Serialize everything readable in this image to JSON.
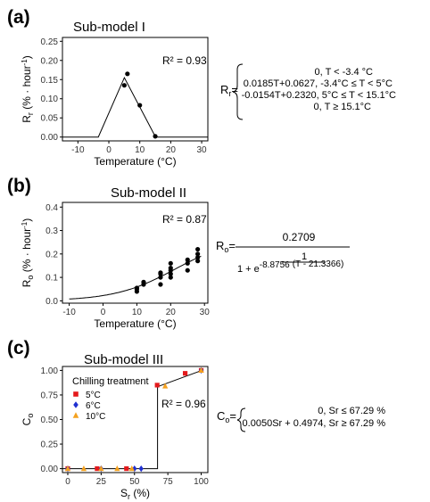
{
  "panels": [
    {
      "tag": "(a)",
      "title": "Sub-model I",
      "r2": "R² = 0.93",
      "eq_lhs": "R",
      "eq_lhs_sub": "r",
      "eq_sep": "=",
      "eq_lines": [
        "0, T < -3.4 °C",
        "0.0185T+0.0627, -3.4°C ≤ T < 5°C",
        "-0.0154T+0.2320, 5°C ≤ T < 15.1°C",
        "0, T ≥ 15.1°C"
      ]
    },
    {
      "tag": "(b)",
      "title": "Sub-model II",
      "r2": "R² = 0.87",
      "eq_lhs": "R",
      "eq_lhs_sub": "o",
      "eq_sep": "=",
      "eq_numer": "0.2709",
      "eq_inner_numer": "1",
      "eq_inner_denom_prefix": "1 + e",
      "eq_exponent": "-8.8756",
      "eq_tail": "(T - 21.3366)"
    },
    {
      "tag": "(c)",
      "title": "Sub-model III",
      "r2": "R² = 0.96",
      "eq_lhs": "C",
      "eq_lhs_sub": "o",
      "eq_sep": "=",
      "eq_lines": [
        "0, Sr ≤ 67.29 %",
        "0.0050Sr + 0.4974, Sr ≥ 67.29 %"
      ],
      "legend_title": "Chilling treatment"
    }
  ],
  "chart_data": [
    {
      "type": "scatter",
      "title": "Sub-model I",
      "xlabel": "Temperature (°C)",
      "ylabel": "Rr (% · hour⁻¹)",
      "xlim": [
        -15,
        32
      ],
      "ylim": [
        -0.01,
        0.26
      ],
      "xticks": [
        -10,
        0,
        10,
        20,
        30
      ],
      "yticks": [
        0.0,
        0.05,
        0.1,
        0.15,
        0.2,
        0.25
      ],
      "xtick_labels": [
        "-10",
        "0",
        "10",
        "20",
        "30"
      ],
      "ytick_labels": [
        "0.00",
        "0.05",
        "0.10",
        "0.15",
        "0.20",
        "0.25"
      ],
      "points": [
        {
          "x": 5,
          "y": 0.135
        },
        {
          "x": 6,
          "y": 0.165
        },
        {
          "x": 10,
          "y": 0.083
        },
        {
          "x": 15,
          "y": 0.002
        }
      ],
      "model_curve": [
        [
          -15,
          0
        ],
        [
          -3.4,
          0
        ],
        [
          5,
          0.155
        ],
        [
          15.1,
          0
        ],
        [
          32,
          0
        ]
      ],
      "grid": false
    },
    {
      "type": "scatter",
      "title": "Sub-model II",
      "xlabel": "Temperature (°C)",
      "ylabel": "Ro (% · hour⁻¹)",
      "xlim": [
        -12,
        31
      ],
      "ylim": [
        -0.01,
        0.42
      ],
      "xticks": [
        -10,
        0,
        10,
        20,
        30
      ],
      "yticks": [
        0.0,
        0.1,
        0.2,
        0.3,
        0.4
      ],
      "xtick_labels": [
        "-10",
        "0",
        "10",
        "20",
        "30"
      ],
      "ytick_labels": [
        "0.0",
        "0.1",
        "0.2",
        "0.3",
        "0.4"
      ],
      "points": [
        {
          "x": 10,
          "y": 0.04
        },
        {
          "x": 10,
          "y": 0.05
        },
        {
          "x": 10,
          "y": 0.055
        },
        {
          "x": 12,
          "y": 0.07
        },
        {
          "x": 12,
          "y": 0.08
        },
        {
          "x": 17,
          "y": 0.07
        },
        {
          "x": 17,
          "y": 0.1
        },
        {
          "x": 17,
          "y": 0.115
        },
        {
          "x": 17,
          "y": 0.12
        },
        {
          "x": 20,
          "y": 0.1
        },
        {
          "x": 20,
          "y": 0.115
        },
        {
          "x": 20,
          "y": 0.13
        },
        {
          "x": 20,
          "y": 0.14
        },
        {
          "x": 20,
          "y": 0.16
        },
        {
          "x": 25,
          "y": 0.13
        },
        {
          "x": 25,
          "y": 0.16
        },
        {
          "x": 25,
          "y": 0.175
        },
        {
          "x": 28,
          "y": 0.17
        },
        {
          "x": 28,
          "y": 0.185
        },
        {
          "x": 28,
          "y": 0.2
        },
        {
          "x": 28,
          "y": 0.22
        }
      ],
      "model": {
        "a": 0.2709,
        "b": 8.8756,
        "c": 21.3366,
        "x_from": -10,
        "x_to": 29
      },
      "grid": false
    },
    {
      "type": "scatter",
      "title": "Sub-model III",
      "xlabel": "Sr (%)",
      "ylabel": "Co",
      "xlim": [
        -4,
        105
      ],
      "ylim": [
        -0.04,
        1.04
      ],
      "xticks": [
        0,
        25,
        50,
        75,
        100
      ],
      "yticks": [
        0.0,
        0.25,
        0.5,
        0.75,
        1.0
      ],
      "xtick_labels": [
        "0",
        "25",
        "50",
        "75",
        "100"
      ],
      "ytick_labels": [
        "0.00",
        "0.25",
        "0.50",
        "0.75",
        "1.00"
      ],
      "legend_position": "top-left",
      "series": [
        {
          "name": "5°C",
          "color": "#e41a1c",
          "marker": "square",
          "points": [
            [
              0,
              0
            ],
            [
              22,
              0
            ],
            [
              44,
              0
            ],
            [
              67,
              0.85
            ],
            [
              88,
              0.97
            ],
            [
              100,
              1
            ]
          ]
        },
        {
          "name": "6°C",
          "color": "#1f2fd0",
          "marker": "diamond",
          "points": [
            [
              0,
              0
            ],
            [
              25,
              0
            ],
            [
              50,
              0
            ],
            [
              55,
              0
            ],
            [
              100,
              1
            ]
          ]
        },
        {
          "name": "10°C",
          "color": "#f4a11f",
          "marker": "triangle",
          "points": [
            [
              0,
              0
            ],
            [
              12,
              0
            ],
            [
              25,
              0
            ],
            [
              37,
              0
            ],
            [
              48,
              0
            ],
            [
              73,
              0.84
            ],
            [
              100,
              1
            ]
          ]
        }
      ],
      "model_curve": [
        [
          -4,
          0
        ],
        [
          67.29,
          0
        ],
        [
          67.29,
          0.834
        ],
        [
          100,
          0.997
        ]
      ],
      "grid": false
    }
  ]
}
